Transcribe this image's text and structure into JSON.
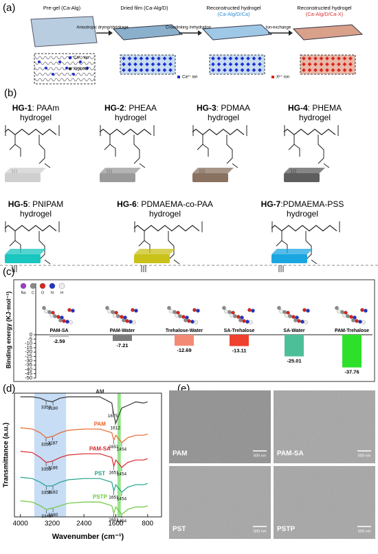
{
  "panel_a": {
    "label": "(a)",
    "stages": [
      {
        "title": "Pre-gel (Ca-Alg)"
      },
      {
        "title": "Dried film (Ca-Alg/D)"
      },
      {
        "title": "Reconstructed hydrogel",
        "subtitle": "(Ca-Alg/D/Ca)",
        "color": "#2a8bd6"
      },
      {
        "title": "Reconstructed hydrogel",
        "subtitle": "(Ca-Alg/D/Ca-X)",
        "color": "#d6302a"
      }
    ],
    "arrows": [
      "Anisotropic drying/shrinkage",
      "Crosslinking /rehydration",
      "Ion-exchange"
    ],
    "legend": [
      "Ca²⁺ ion",
      "Alginate",
      "Ca²⁺ ion",
      "Xⁿ⁺ ion"
    ]
  },
  "panel_b": {
    "label": "(b)",
    "gels": [
      {
        "id": "HG-1",
        "name": ": PAAm",
        "line2": "hydrogel",
        "color": "#cfcfcf"
      },
      {
        "id": "HG-2",
        "name": ": PHEAA",
        "line2": "hydrogel",
        "color": "#9a9a9a"
      },
      {
        "id": "HG-3",
        "name": ": PDMAA",
        "line2": "hydrogel",
        "color": "#8a7260"
      },
      {
        "id": "HG-4",
        "name": ": PHEMA",
        "line2": "hydrogel",
        "color": "#5e5e5e"
      },
      {
        "id": "HG-5",
        "name": ": PNIPAM",
        "line2": "hydrogel",
        "color": "#19c6c0"
      },
      {
        "id": "HG-6",
        "name": ": PDMAEMA-co-PAA",
        "line2": "hydrogel",
        "color": "#c9c21a"
      },
      {
        "id": "HG-7",
        "name": ":PDMAEMA-PSS",
        "line2": "hydrogel",
        "color": "#1aa6e0"
      }
    ]
  },
  "panel_c": {
    "label": "(c)",
    "chart_data": {
      "type": "bar",
      "ylabel": "Binding energy (KJ·mol⁻¹)",
      "atoms": [
        {
          "name": "Na",
          "color": "#9b3fc9"
        },
        {
          "name": "C",
          "color": "#8a8a8a"
        },
        {
          "name": "O",
          "color": "#d9251c"
        },
        {
          "name": "N",
          "color": "#2233c8"
        },
        {
          "name": "H",
          "color": "#eeeeee"
        }
      ],
      "categories": [
        "PAM-SA",
        "PAM-Water",
        "Trehalose-Water",
        "SA-Trehalose",
        "SA-Water",
        "PAM-Trehalose"
      ],
      "values": [
        -2.59,
        -7.21,
        -12.69,
        -13.11,
        -25.01,
        -37.76
      ],
      "colors": [
        "#bdbdbd",
        "#7d7d7d",
        "#f28a76",
        "#f0402e",
        "#4dbf98",
        "#2ee02a"
      ],
      "ylim": [
        -50,
        0
      ],
      "yticks": [
        0,
        -5,
        -10,
        -15,
        -20,
        -25,
        -30,
        -35,
        -40,
        -45,
        -50
      ]
    }
  },
  "panel_d": {
    "label": "(d)",
    "chart_data": {
      "type": "line",
      "xlabel": "Wavenumber (cm⁻¹)",
      "ylabel": "Transmittance (a.u.)",
      "xlim": [
        4150,
        450
      ],
      "xticks": [
        4000,
        3200,
        2400,
        1600,
        800
      ],
      "ylim": [
        0,
        100
      ],
      "highlights": [
        {
          "from": 3650,
          "to": 2850,
          "color": "#b9d3f2"
        },
        {
          "from": 1560,
          "to": 1475,
          "color": "#7be06a"
        }
      ],
      "x": [
        4000,
        3700,
        3500,
        3353,
        3200,
        3000,
        2800,
        2400,
        2000,
        1700,
        1650,
        1600,
        1450,
        1300,
        1100,
        900,
        800
      ],
      "series": [
        {
          "name": "AM",
          "color": "#333333",
          "values": [
            97,
            97,
            96,
            94,
            93,
            96,
            97,
            97,
            97,
            92,
            82,
            76,
            88,
            90,
            93,
            92,
            93
          ]
        },
        {
          "name": "PAM",
          "color": "#e8642a",
          "values": [
            72,
            71,
            68,
            64,
            65,
            68,
            70,
            71,
            71,
            68,
            62,
            66,
            60,
            64,
            66,
            66,
            67
          ]
        },
        {
          "name": "PAM-SA",
          "color": "#d9252a",
          "values": [
            53,
            52,
            48,
            44,
            45,
            48,
            50,
            51,
            51,
            48,
            41,
            46,
            40,
            44,
            46,
            46,
            47
          ]
        },
        {
          "name": "PST",
          "color": "#1fa08a",
          "values": [
            32,
            31,
            28,
            25,
            25,
            28,
            30,
            31,
            31,
            28,
            21,
            26,
            20,
            24,
            26,
            26,
            27
          ]
        },
        {
          "name": "PSTP",
          "color": "#6ac73c",
          "values": [
            13,
            12,
            9,
            6,
            7,
            9,
            11,
            12,
            12,
            9,
            3,
            8,
            2,
            6,
            8,
            8,
            9
          ]
        }
      ],
      "peaks": [
        {
          "x": 3353,
          "series": 0
        },
        {
          "x": 3180,
          "series": 0
        },
        {
          "x": 1675,
          "series": 0
        },
        {
          "x": 1612,
          "series": 0
        },
        {
          "x": 3356,
          "series": 1
        },
        {
          "x": 3187,
          "series": 1
        },
        {
          "x": 1651,
          "series": 1
        },
        {
          "x": 1454,
          "series": 1
        },
        {
          "x": 3353,
          "series": 2
        },
        {
          "x": 3186,
          "series": 2
        },
        {
          "x": 1651,
          "series": 2
        },
        {
          "x": 1454,
          "series": 2
        },
        {
          "x": 3350,
          "series": 3
        },
        {
          "x": 3182,
          "series": 3
        },
        {
          "x": 1651,
          "series": 3
        },
        {
          "x": 1454,
          "series": 3
        },
        {
          "x": 3349,
          "series": 4
        },
        {
          "x": 3180,
          "series": 4
        },
        {
          "x": 1651,
          "series": 4
        },
        {
          "x": 1454,
          "series": 4
        }
      ]
    }
  },
  "panel_e": {
    "label": "(e)",
    "images": [
      {
        "label": "PAM"
      },
      {
        "label": "PAM-SA"
      },
      {
        "label": "PST"
      },
      {
        "label": "PSTP"
      }
    ],
    "scale": "500 nm"
  }
}
